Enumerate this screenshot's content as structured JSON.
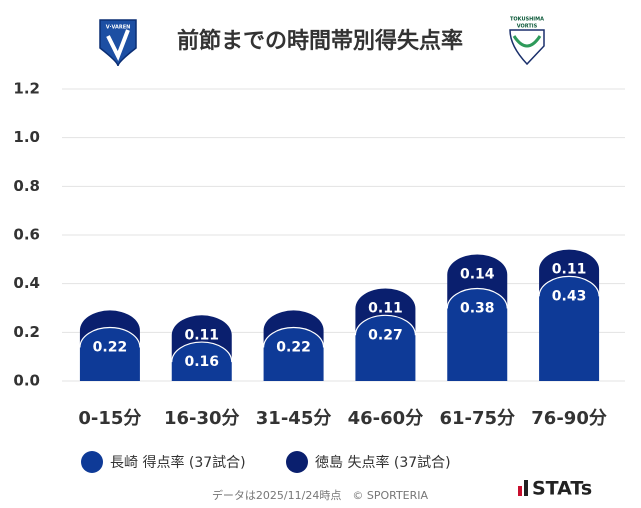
{
  "chart_data": {
    "type": "bar",
    "stacked": true,
    "title": "前節までの時間帯別得失点率",
    "logos": {
      "left": "V·VAREN",
      "right_top": "TOKUSHIMA",
      "right_bottom": "VORTIS"
    },
    "categories": [
      "0-15分",
      "16-30分",
      "31-45分",
      "46-60分",
      "61-75分",
      "76-90分"
    ],
    "series": [
      {
        "name": "長崎 得点率 (37試合)",
        "color": "#0e3a97",
        "values": [
          0.22,
          0.16,
          0.22,
          0.27,
          0.38,
          0.43
        ]
      },
      {
        "name": "徳島 失点率 (37試合)",
        "color": "#0a1f6e",
        "values": [
          0.07,
          0.11,
          0.07,
          0.11,
          0.14,
          0.11
        ],
        "value_labels": [
          null,
          "0.11",
          null,
          "0.11",
          "0.14",
          "0.11"
        ]
      }
    ],
    "ylim": [
      0,
      1.2
    ],
    "yticks": [
      {
        "value": 0,
        "label": "0.0"
      },
      0.2,
      0.4,
      0.6,
      0.8,
      {
        "value": 1,
        "label": "1.0"
      },
      1.2
    ],
    "grid": true,
    "footer": "データは2025/11/24時点　© SPORTERIA",
    "brand": "STATs"
  }
}
